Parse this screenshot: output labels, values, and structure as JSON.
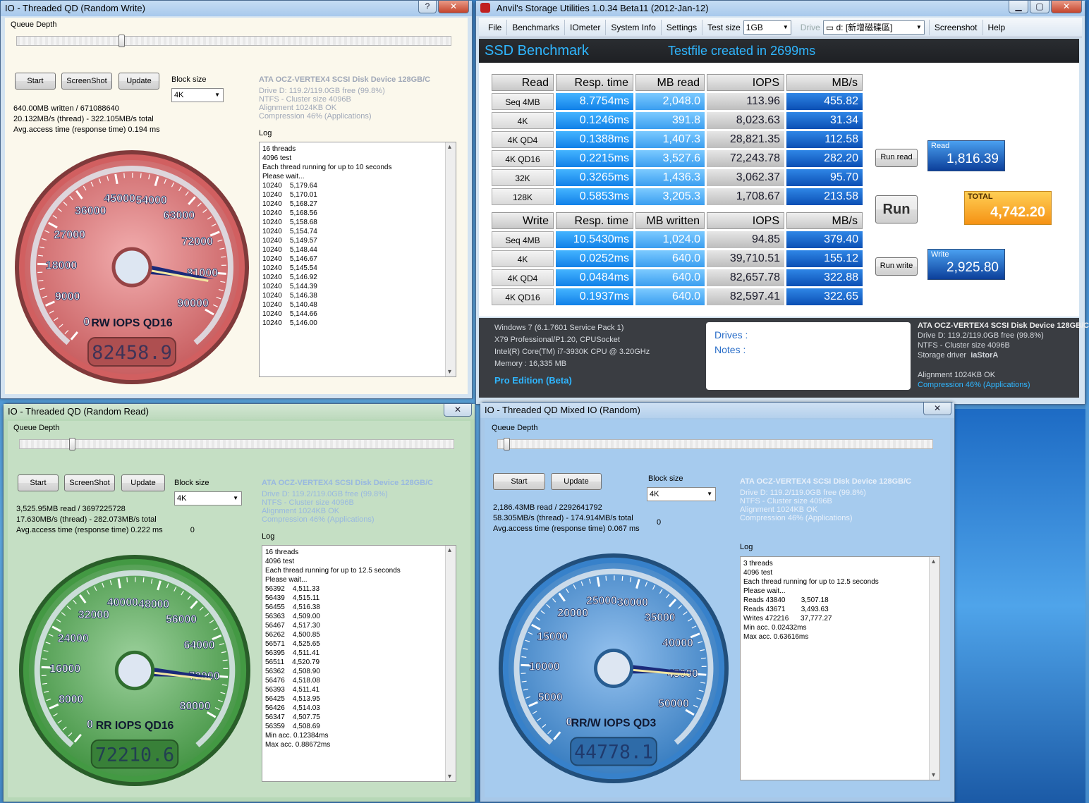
{
  "write_win": {
    "title": "IO - Threaded QD (Random Write)",
    "queue_label": "Queue Depth",
    "buttons": {
      "start": "Start",
      "screenshot": "ScreenShot",
      "update": "Update"
    },
    "block_size_label": "Block size",
    "block_size": "4K",
    "drive": {
      "name": "ATA OCZ-VERTEX4 SCSI Disk Device 128GB/C",
      "free": "Drive D: 119.2/119.0GB free (99.8%)",
      "fs": "NTFS - Cluster size 4096B",
      "align": "Alignment 1024KB OK",
      "comp": "Compression 46% (Applications)"
    },
    "stats": {
      "l1": "640.00MB written / 671088640",
      "l2": "20.132MB/s (thread) - 322.105MB/s total",
      "l3": "Avg.access time (response time) 0.194 ms"
    },
    "log_label": "Log",
    "log": [
      "16 threads",
      "4096 test",
      "Each thread running for up to 10 seconds",
      "Please wait...",
      "10240    5,179.64",
      "10240    5,170.01",
      "10240    5,168.27",
      "10240    5,168.56",
      "10240    5,158.68",
      "10240    5,154.74",
      "10240    5,149.57",
      "10240    5,148.44",
      "10240    5,146.67",
      "10240    5,145.54",
      "10240    5,146.92",
      "10240    5,144.39",
      "10240    5,146.38",
      "10240    5,140.48",
      "10240    5,144.66",
      "10240    5,146.00"
    ],
    "gauge": {
      "label": "RW IOPS QD16",
      "readout": "82458.9",
      "ticks": [
        "0",
        "9000",
        "18000",
        "27000",
        "36000",
        "45000",
        "54000",
        "63000",
        "72000",
        "81000",
        "90000"
      ],
      "value_fraction": 0.916,
      "color": "#e8696b"
    }
  },
  "read_win": {
    "title": "IO - Threaded QD (Random Read)",
    "queue_label": "Queue Depth",
    "buttons": {
      "start": "Start",
      "screenshot": "ScreenShot",
      "update": "Update"
    },
    "block_size_label": "Block size",
    "block_size": "4K",
    "drive": {
      "name": "ATA OCZ-VERTEX4 SCSI Disk Device 128GB/C",
      "free": "Drive D: 119.2/119.0GB free (99.8%)",
      "fs": "NTFS - Cluster size 4096B",
      "align": "Alignment 1024KB OK",
      "comp": "Compression 46% (Applications)"
    },
    "stats": {
      "l1": "3,525.95MB read / 3697225728",
      "l2": "17.630MB/s (thread) - 282.073MB/s total",
      "l3": "Avg.access time (response time) 0.222 ms",
      "zero": "0"
    },
    "log_label": "Log",
    "log": [
      "16 threads",
      "4096 test",
      "Each thread running for up to 12.5 seconds",
      "Please wait...",
      "56392    4,511.33",
      "56439    4,515.11",
      "56455    4,516.38",
      "56363    4,509.00",
      "56467    4,517.30",
      "56262    4,500.85",
      "56571    4,525.65",
      "56395    4,511.41",
      "56511    4,520.79",
      "56362    4,508.90",
      "56476    4,518.08",
      "56393    4,511.41",
      "56425    4,513.95",
      "56426    4,514.03",
      "56347    4,507.75",
      "56359    4,508.69",
      "Min acc. 0.12384ms",
      "Max acc. 0.88672ms"
    ],
    "gauge": {
      "label": "RR IOPS QD16",
      "readout": "72210.6",
      "ticks": [
        "0",
        "8000",
        "16000",
        "24000",
        "32000",
        "40000",
        "48000",
        "56000",
        "64000",
        "72000",
        "80000"
      ],
      "value_fraction": 0.903,
      "color": "#4aaa4a"
    }
  },
  "mixed_win": {
    "title": "IO - Threaded QD Mixed IO (Random)",
    "queue_label": "Queue Depth",
    "buttons": {
      "start": "Start",
      "update": "Update"
    },
    "block_size_label": "Block size",
    "block_size": "4K",
    "drive": {
      "name": "ATA OCZ-VERTEX4 SCSI Disk Device 128GB/C",
      "free": "Drive D: 119.2/119.0GB free (99.8%)",
      "fs": "NTFS - Cluster size 4096B",
      "align": "Alignment 1024KB OK",
      "comp": "Compression 46% (Applications)"
    },
    "stats": {
      "l1": "2,186.43MB read / 2292641792",
      "l2": "58.305MB/s (thread) - 174.914MB/s total",
      "l3": "Avg.access time (response time) 0.067 ms",
      "zero": "0"
    },
    "log_label": "Log",
    "log": [
      "3 threads",
      "4096 test",
      "Each thread running for up to 12.5 seconds",
      "Please wait...",
      "Reads 43840        3,507.18",
      "Reads 43671        3,493.63",
      "Writes 472216      37,777.27",
      "Min acc. 0.02432ms",
      "Max acc. 0.63616ms"
    ],
    "gauge": {
      "label": "RR/W IOPS QD3",
      "readout": "44778.1",
      "ticks": [
        "0",
        "5000",
        "10000",
        "15000",
        "20000",
        "25000",
        "30000",
        "35000",
        "40000",
        "45000",
        "50000"
      ],
      "value_fraction": 0.896,
      "color": "#3d8fe0"
    }
  },
  "anvil": {
    "title": "Anvil's Storage Utilities 1.0.34 Beta11 (2012-Jan-12)",
    "menu": {
      "file": "File",
      "benchmarks": "Benchmarks",
      "iometer": "IOmeter",
      "sysinfo": "System Info",
      "settings": "Settings",
      "testsize_label": "Test size",
      "testsize": "1GB",
      "drive_label": "Drive",
      "drive": "d: [新增磁碟區]",
      "screenshot": "Screenshot",
      "help": "Help"
    },
    "heading": "SSD Benchmark",
    "status": "Testfile created in 2699ms",
    "read_headers": [
      "Read",
      "Resp. time",
      "MB read",
      "IOPS",
      "MB/s"
    ],
    "read_rows": [
      [
        "Seq 4MB",
        "8.7754ms",
        "2,048.0",
        "113.96",
        "455.82"
      ],
      [
        "4K",
        "0.1246ms",
        "391.8",
        "8,023.63",
        "31.34"
      ],
      [
        "4K QD4",
        "0.1388ms",
        "1,407.3",
        "28,821.35",
        "112.58"
      ],
      [
        "4K QD16",
        "0.2215ms",
        "3,527.6",
        "72,243.78",
        "282.20"
      ],
      [
        "32K",
        "0.3265ms",
        "1,436.3",
        "3,062.37",
        "95.70"
      ],
      [
        "128K",
        "0.5853ms",
        "3,205.3",
        "1,708.67",
        "213.58"
      ]
    ],
    "write_headers": [
      "Write",
      "Resp. time",
      "MB written",
      "IOPS",
      "MB/s"
    ],
    "write_rows": [
      [
        "Seq 4MB",
        "10.5430ms",
        "1,024.0",
        "94.85",
        "379.40"
      ],
      [
        "4K",
        "0.0252ms",
        "640.0",
        "39,710.51",
        "155.12"
      ],
      [
        "4K QD4",
        "0.0484ms",
        "640.0",
        "82,657.78",
        "322.88"
      ],
      [
        "4K QD16",
        "0.1937ms",
        "640.0",
        "82,597.41",
        "322.65"
      ]
    ],
    "run_read": "Run read",
    "run": "Run",
    "run_write": "Run write",
    "read_score_label": "Read",
    "read_score": "1,816.39",
    "total_label": "TOTAL",
    "total_score": "4,742.20",
    "write_score_label": "Write",
    "write_score": "2,925.80",
    "sys": {
      "os": "Windows 7 (6.1.7601 Service Pack 1)",
      "board": "X79 Professional/P1.20, CPUSocket",
      "cpu": "Intel(R) Core(TM) i7-3930K CPU @ 3.20GHz",
      "mem": "Memory : 16,335 MB",
      "edition": "Pro Edition (Beta)"
    },
    "notes": {
      "drives": "Drives :",
      "notes": "Notes :"
    },
    "drive_info": {
      "name": "ATA OCZ-VERTEX4 SCSI Disk Device 128GB/C",
      "free": "Drive D: 119.2/119.0GB free (99.8%)",
      "fs": "NTFS - Cluster size 4096B",
      "driver_label": "Storage driver",
      "driver": "iaStorA",
      "align": "Alignment 1024KB OK",
      "comp": "Compression 46% (Applications)"
    }
  },
  "icons": {
    "minimize": "minimize-icon",
    "maximize": "maximize-icon",
    "close": "close-icon",
    "help": "help-icon",
    "app": "anvil-app-icon",
    "drive": "drive-icon",
    "dropdown": "chevron-down-icon"
  }
}
